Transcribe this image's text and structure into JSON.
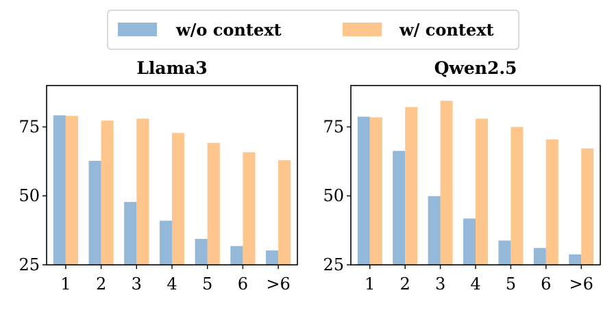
{
  "legend": {
    "entries": [
      {
        "label": "w/o context",
        "color": "#94b8d8"
      },
      {
        "label": "w/ context",
        "color": "#fec68c"
      }
    ]
  },
  "chart_data": [
    {
      "type": "bar",
      "title": "Llama3",
      "categories": [
        "1",
        "2",
        "3",
        "4",
        "5",
        "6",
        ">6"
      ],
      "series": [
        {
          "name": "w/o context",
          "values": [
            79.2,
            62.7,
            47.8,
            41.0,
            34.4,
            31.8,
            30.2
          ]
        },
        {
          "name": "w/ context",
          "values": [
            79.0,
            77.3,
            78.0,
            72.8,
            69.2,
            65.8,
            62.9
          ]
        }
      ],
      "yticks": [
        25,
        50,
        75
      ],
      "ylim": [
        25,
        90
      ],
      "legend_position": "top-center"
    },
    {
      "type": "bar",
      "title": "Qwen2.5",
      "categories": [
        "1",
        "2",
        "3",
        "4",
        "5",
        "6",
        ">6"
      ],
      "series": [
        {
          "name": "w/o context",
          "values": [
            78.7,
            66.3,
            49.9,
            41.8,
            33.8,
            31.1,
            28.8
          ]
        },
        {
          "name": "w/ context",
          "values": [
            78.5,
            82.2,
            84.5,
            78.0,
            75.0,
            70.5,
            67.2
          ]
        }
      ],
      "yticks": [
        25,
        50,
        75
      ],
      "ylim": [
        25,
        90
      ],
      "legend_position": "top-center"
    }
  ]
}
